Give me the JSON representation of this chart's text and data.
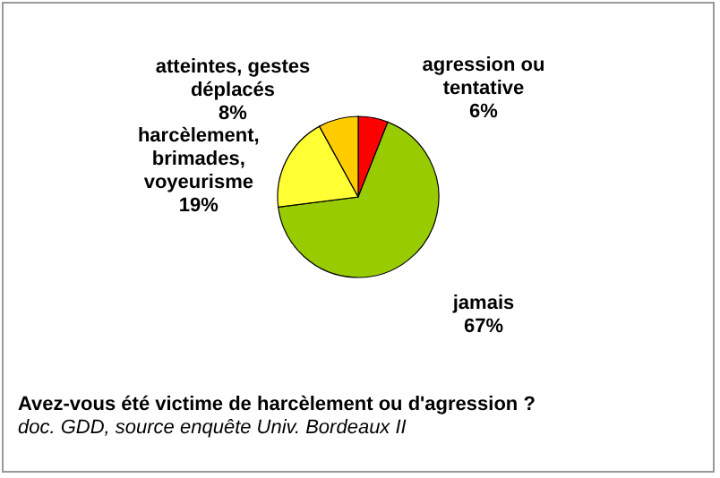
{
  "chart_data": {
    "type": "pie",
    "categories": [
      "agression ou tentative",
      "jamais",
      "harcèlement, brimades, voyeurisme",
      "atteintes, gestes déplacés"
    ],
    "values": [
      6,
      67,
      19,
      8
    ],
    "value_labels": [
      "6%",
      "67%",
      "19%",
      "8%"
    ],
    "colors": [
      "#ff0000",
      "#99cc00",
      "#ffff33",
      "#ffcc00"
    ],
    "legend": false,
    "annotations": [
      "Avez-vous été victime de harcèlement ou d'agression ?",
      "doc. GDD, source enquête Univ. Bordeaux II"
    ]
  }
}
